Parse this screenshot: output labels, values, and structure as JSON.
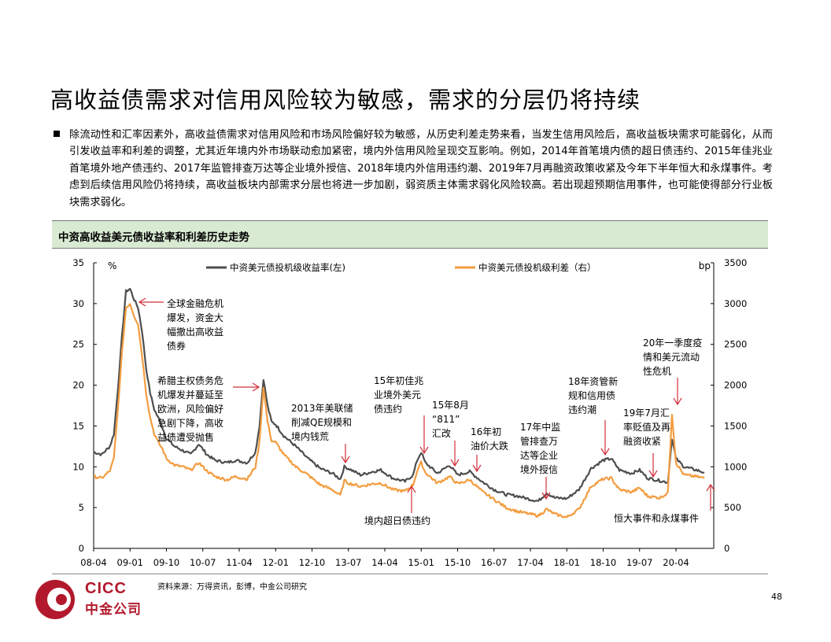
{
  "page": {
    "title": "高收益债需求对信用风险较为敏感，需求的分层仍将持续",
    "bullet": "除流动性和汇率因素外，高收益债需求对信用风险和市场风险偏好较为敏感，从历史利差走势来看，当发生信用风险后，高收益板块需求可能弱化，从而引发收益率和利差的调整，尤其近年境内外市场联动愈加紧密，境内外信用风险呈现交互影响。例如，2014年首笔境内债的超日债违约、2015年佳兆业首笔境外地产债违约、2017年监管排查万达等企业境外授信、2018年境内外信用违约潮、2019年7月再融资政策收紧及今年下半年恒大和永煤事件。考虑到后续信用风险仍将持续，高收益板块内部需求分层也将进一步加剧，弱资质主体需求弱化风险较高。若出现超预期信用事件，也可能使得部分行业板块需求弱化。",
    "chart_header": "中资高收益美元债收益率和利差历史走势",
    "source": "资料来源：万得资讯，彭博，中金公司研究",
    "page_number": "48",
    "logo_en": "CICC",
    "logo_cn": "中金公司"
  },
  "chart_data": {
    "type": "line",
    "left_unit": "%",
    "right_unit": "bp",
    "left_ylim": [
      0,
      35
    ],
    "right_ylim": [
      0,
      3500
    ],
    "left_ticks": [
      "0",
      "5",
      "10",
      "15",
      "20",
      "25",
      "30",
      "35"
    ],
    "right_ticks": [
      "0",
      "500",
      "1000",
      "1500",
      "2000",
      "2500",
      "3000",
      "3500"
    ],
    "x_ticks": [
      "08-04",
      "09-01",
      "09-10",
      "10-07",
      "11-04",
      "12-01",
      "12-10",
      "13-07",
      "14-04",
      "15-01",
      "15-10",
      "16-07",
      "17-04",
      "18-01",
      "18-10",
      "19-07",
      "20-04"
    ],
    "grid": false,
    "legend_placement": "top",
    "series": [
      {
        "name": "中资美元债投机级收益率(左)",
        "axis": "left",
        "color": "#4d4d4f",
        "points": [
          [
            "2008-04",
            11.8
          ],
          [
            "2008-06",
            11.5
          ],
          [
            "2008-08",
            12.5
          ],
          [
            "2008-09",
            14.0
          ],
          [
            "2008-10",
            19.5
          ],
          [
            "2008-11",
            26.0
          ],
          [
            "2008-12",
            31.5
          ],
          [
            "2009-01",
            31.8
          ],
          [
            "2009-02",
            30.5
          ],
          [
            "2009-03",
            29.5
          ],
          [
            "2009-04",
            26.5
          ],
          [
            "2009-05",
            22.0
          ],
          [
            "2009-06",
            19.0
          ],
          [
            "2009-07",
            17.0
          ],
          [
            "2009-08",
            16.0
          ],
          [
            "2009-09",
            14.8
          ],
          [
            "2009-10",
            13.5
          ],
          [
            "2009-12",
            12.5
          ],
          [
            "2010-02",
            12.0
          ],
          [
            "2010-04",
            11.5
          ],
          [
            "2010-06",
            12.8
          ],
          [
            "2010-08",
            11.5
          ],
          [
            "2010-10",
            10.8
          ],
          [
            "2011-01",
            10.5
          ],
          [
            "2011-03",
            10.8
          ],
          [
            "2011-06",
            10.5
          ],
          [
            "2011-08",
            11.8
          ],
          [
            "2011-09",
            15.0
          ],
          [
            "2011-10",
            20.8
          ],
          [
            "2011-11",
            17.5
          ],
          [
            "2011-12",
            15.5
          ],
          [
            "2012-01",
            15.2
          ],
          [
            "2012-03",
            13.8
          ],
          [
            "2012-06",
            12.5
          ],
          [
            "2012-09",
            11.0
          ],
          [
            "2012-12",
            9.8
          ],
          [
            "2013-03",
            9.2
          ],
          [
            "2013-05",
            8.5
          ],
          [
            "2013-06",
            10.0
          ],
          [
            "2013-07",
            9.8
          ],
          [
            "2013-10",
            9.0
          ],
          [
            "2014-01",
            9.4
          ],
          [
            "2014-03",
            9.6
          ],
          [
            "2014-06",
            8.6
          ],
          [
            "2014-09",
            8.2
          ],
          [
            "2014-11",
            9.0
          ],
          [
            "2014-12",
            10.8
          ],
          [
            "2015-01",
            11.8
          ],
          [
            "2015-02",
            10.5
          ],
          [
            "2015-05",
            9.2
          ],
          [
            "2015-08",
            10.2
          ],
          [
            "2015-10",
            9.0
          ],
          [
            "2016-01",
            9.4
          ],
          [
            "2016-04",
            8.2
          ],
          [
            "2016-07",
            7.2
          ],
          [
            "2016-10",
            6.6
          ],
          [
            "2017-01",
            6.4
          ],
          [
            "2017-04",
            6.0
          ],
          [
            "2017-06",
            5.8
          ],
          [
            "2017-08",
            6.8
          ],
          [
            "2017-10",
            6.2
          ],
          [
            "2018-01",
            6.1
          ],
          [
            "2018-04",
            7.2
          ],
          [
            "2018-07",
            9.8
          ],
          [
            "2018-10",
            10.8
          ],
          [
            "2018-12",
            11.0
          ],
          [
            "2019-02",
            9.6
          ],
          [
            "2019-05",
            9.2
          ],
          [
            "2019-07",
            9.6
          ],
          [
            "2019-09",
            8.6
          ],
          [
            "2019-12",
            8.3
          ],
          [
            "2020-02",
            8.1
          ],
          [
            "2020-03",
            13.5
          ],
          [
            "2020-04",
            11.0
          ],
          [
            "2020-06",
            10.0
          ],
          [
            "2020-09",
            9.6
          ],
          [
            "2020-11",
            9.3
          ]
        ]
      },
      {
        "name": "中资美元债投机级利差（右）",
        "axis": "right",
        "color": "#f39c3f",
        "points": [
          [
            "2008-04",
            880
          ],
          [
            "2008-06",
            860
          ],
          [
            "2008-08",
            950
          ],
          [
            "2008-09",
            1100
          ],
          [
            "2008-10",
            1700
          ],
          [
            "2008-11",
            2400
          ],
          [
            "2008-12",
            2950
          ],
          [
            "2009-01",
            3000
          ],
          [
            "2009-02",
            2850
          ],
          [
            "2009-03",
            2750
          ],
          [
            "2009-04",
            2350
          ],
          [
            "2009-05",
            1900
          ],
          [
            "2009-06",
            1600
          ],
          [
            "2009-07",
            1400
          ],
          [
            "2009-08",
            1300
          ],
          [
            "2009-09",
            1220
          ],
          [
            "2009-10",
            1100
          ],
          [
            "2009-12",
            1020
          ],
          [
            "2010-02",
            1000
          ],
          [
            "2010-04",
            960
          ],
          [
            "2010-06",
            1050
          ],
          [
            "2010-08",
            950
          ],
          [
            "2010-10",
            880
          ],
          [
            "2011-01",
            840
          ],
          [
            "2011-03",
            880
          ],
          [
            "2011-06",
            850
          ],
          [
            "2011-08",
            1000
          ],
          [
            "2011-09",
            1300
          ],
          [
            "2011-10",
            1980
          ],
          [
            "2011-11",
            1550
          ],
          [
            "2011-12",
            1320
          ],
          [
            "2012-01",
            1300
          ],
          [
            "2012-03",
            1150
          ],
          [
            "2012-06",
            1000
          ],
          [
            "2012-09",
            900
          ],
          [
            "2012-12",
            780
          ],
          [
            "2013-03",
            720
          ],
          [
            "2013-05",
            650
          ],
          [
            "2013-06",
            830
          ],
          [
            "2013-07",
            800
          ],
          [
            "2013-10",
            760
          ],
          [
            "2014-01",
            790
          ],
          [
            "2014-03",
            800
          ],
          [
            "2014-06",
            720
          ],
          [
            "2014-09",
            700
          ],
          [
            "2014-11",
            780
          ],
          [
            "2014-12",
            950
          ],
          [
            "2015-01",
            1050
          ],
          [
            "2015-02",
            930
          ],
          [
            "2015-05",
            800
          ],
          [
            "2015-08",
            880
          ],
          [
            "2015-10",
            790
          ],
          [
            "2016-01",
            840
          ],
          [
            "2016-04",
            700
          ],
          [
            "2016-07",
            600
          ],
          [
            "2016-10",
            500
          ],
          [
            "2017-01",
            450
          ],
          [
            "2017-04",
            420
          ],
          [
            "2017-06",
            400
          ],
          [
            "2017-08",
            480
          ],
          [
            "2017-10",
            420
          ],
          [
            "2018-01",
            380
          ],
          [
            "2018-04",
            480
          ],
          [
            "2018-07",
            760
          ],
          [
            "2018-10",
            850
          ],
          [
            "2018-12",
            860
          ],
          [
            "2019-02",
            720
          ],
          [
            "2019-05",
            690
          ],
          [
            "2019-07",
            740
          ],
          [
            "2019-09",
            640
          ],
          [
            "2019-12",
            620
          ],
          [
            "2020-02",
            680
          ],
          [
            "2020-03",
            1650
          ],
          [
            "2020-04",
            1050
          ],
          [
            "2020-06",
            900
          ],
          [
            "2020-09",
            880
          ],
          [
            "2020-11",
            860
          ]
        ]
      }
    ],
    "annotations": [
      {
        "lines": [
          "全球金融危机",
          "爆发，资金大",
          "幅撤出高收益",
          "债券"
        ],
        "date": "2009-01",
        "arrow": "left"
      },
      {
        "lines": [
          "希腊主权债务危",
          "机爆发并蔓延至",
          "欧洲，风险偏好",
          "急剧下降，高收",
          "益债遭受抛售"
        ],
        "date": "2011-10",
        "arrow": "right"
      },
      {
        "lines": [
          "2013年美联储",
          "削减QE规模和",
          "境内钱荒"
        ],
        "date": "2013-07",
        "arrow": "down"
      },
      {
        "lines": [
          "境内超日债违约"
        ],
        "date": "2014-03",
        "arrow": "up"
      },
      {
        "lines": [
          "15年初佳兆",
          "业境外美元",
          "债违约"
        ],
        "date": "2015-01",
        "arrow": "down"
      },
      {
        "lines": [
          "15年8月",
          "“811”",
          "汇改"
        ],
        "date": "2015-08",
        "arrow": "down"
      },
      {
        "lines": [
          "16年初",
          "油价大跌"
        ],
        "date": "2016-01",
        "arrow": "down"
      },
      {
        "lines": [
          "17年中监",
          "管排查万",
          "达等企业",
          "境外授信"
        ],
        "date": "2017-08",
        "arrow": "down"
      },
      {
        "lines": [
          "18年资管新",
          "规和信用债",
          "违约潮"
        ],
        "date": "2018-07",
        "arrow": "down"
      },
      {
        "lines": [
          "19年7月汇",
          "率贬值及再",
          "融资收紧"
        ],
        "date": "2019-07",
        "arrow": "down"
      },
      {
        "lines": [
          "20年一季度疫",
          "情和美元流动",
          "性危机"
        ],
        "date": "2020-03",
        "arrow": "down"
      },
      {
        "lines": [
          "恒大事件和永煤事件"
        ],
        "date": "2020-11",
        "arrow": "up"
      }
    ]
  }
}
